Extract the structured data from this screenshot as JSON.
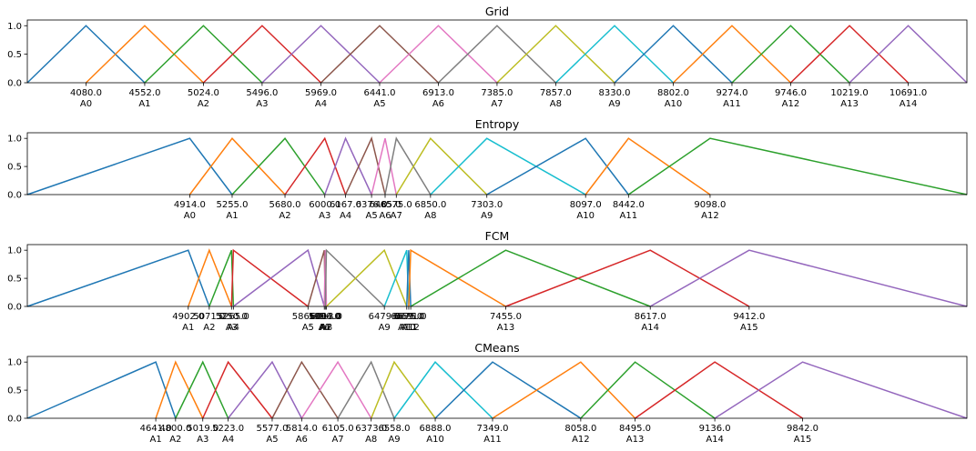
{
  "colors": [
    "#1f77b4",
    "#ff7f0e",
    "#2ca02c",
    "#d62728",
    "#9467bd",
    "#8c564b",
    "#e377c2",
    "#7f7f7f",
    "#bcbd22",
    "#17becf"
  ],
  "chart_data": [
    {
      "type": "line",
      "title": "Grid",
      "xlim": [
        3608,
        11163
      ],
      "ylim": [
        0,
        1.1
      ],
      "yticks": [
        0.0,
        0.5,
        1.0
      ],
      "ytick_labels": [
        "0.0",
        "0.5",
        "1.0"
      ],
      "sets": [
        {
          "name": "A0",
          "points": [
            3608,
            4080,
            4552
          ],
          "tick": "4080.0"
        },
        {
          "name": "A1",
          "points": [
            4080,
            4552,
            5024
          ],
          "tick": "4552.0"
        },
        {
          "name": "A2",
          "points": [
            4552,
            5024,
            5496
          ],
          "tick": "5024.0"
        },
        {
          "name": "A3",
          "points": [
            5024,
            5496,
            5969
          ],
          "tick": "5496.0"
        },
        {
          "name": "A4",
          "points": [
            5496,
            5969,
            6441
          ],
          "tick": "5969.0"
        },
        {
          "name": "A5",
          "points": [
            5969,
            6441,
            6913
          ],
          "tick": "6441.0"
        },
        {
          "name": "A6",
          "points": [
            6441,
            6913,
            7385
          ],
          "tick": "6913.0"
        },
        {
          "name": "A7",
          "points": [
            6913,
            7385,
            7857
          ],
          "tick": "7385.0"
        },
        {
          "name": "A8",
          "points": [
            7385,
            7857,
            8330
          ],
          "tick": "7857.0"
        },
        {
          "name": "A9",
          "points": [
            7857,
            8330,
            8802
          ],
          "tick": "8330.0"
        },
        {
          "name": "A10",
          "points": [
            8330,
            8802,
            9274
          ],
          "tick": "8802.0"
        },
        {
          "name": "A11",
          "points": [
            8802,
            9274,
            9746
          ],
          "tick": "9274.0"
        },
        {
          "name": "A12",
          "points": [
            9274,
            9746,
            10219
          ],
          "tick": "9746.0"
        },
        {
          "name": "A13",
          "points": [
            9746,
            10219,
            10691
          ],
          "tick": "10219.0"
        },
        {
          "name": "A14",
          "points": [
            10219,
            10691,
            11163
          ],
          "tick": "10691.0"
        }
      ]
    },
    {
      "type": "line",
      "title": "Entropy",
      "xlim": [
        3608,
        11163
      ],
      "ylim": [
        0,
        1.1
      ],
      "yticks": [
        0.0,
        0.5,
        1.0
      ],
      "ytick_labels": [
        "0.0",
        "0.5",
        "1.0"
      ],
      "sets": [
        {
          "name": "A0",
          "points": [
            3608,
            4914,
            5255
          ],
          "tick": "4914.0"
        },
        {
          "name": "A1",
          "points": [
            4914,
            5255,
            5680
          ],
          "tick": "5255.0"
        },
        {
          "name": "A2",
          "points": [
            5255,
            5680,
            6000
          ],
          "tick": "5680.0"
        },
        {
          "name": "A3",
          "points": [
            5680,
            6000,
            6167
          ],
          "tick": "6000.0"
        },
        {
          "name": "A4",
          "points": [
            6000,
            6167,
            6376
          ],
          "tick": "6167.0"
        },
        {
          "name": "A5",
          "points": [
            6167,
            6376,
            6485
          ],
          "tick": "6376.0"
        },
        {
          "name": "A6",
          "points": [
            6376,
            6485,
            6575
          ],
          "tick": "6485.0"
        },
        {
          "name": "A7",
          "points": [
            6485,
            6575,
            6850
          ],
          "tick": "6575.0"
        },
        {
          "name": "A8",
          "points": [
            6575,
            6850,
            7303
          ],
          "tick": "6850.0"
        },
        {
          "name": "A9",
          "points": [
            6850,
            7303,
            8097
          ],
          "tick": "7303.0"
        },
        {
          "name": "A10",
          "points": [
            7303,
            8097,
            8442
          ],
          "tick": "8097.0"
        },
        {
          "name": "A11",
          "points": [
            8097,
            8442,
            9098
          ],
          "tick": "8442.0"
        },
        {
          "name": "A12",
          "points": [
            8442,
            9098,
            11163
          ],
          "tick": "9098.0"
        }
      ]
    },
    {
      "type": "line",
      "title": "FCM",
      "xlim": [
        3608,
        11163
      ],
      "ylim": [
        0,
        1.1
      ],
      "yticks": [
        0.0,
        0.5,
        1.0
      ],
      "ytick_labels": [
        "0.0",
        "0.5",
        "1.0"
      ],
      "sets": [
        {
          "name": "A1",
          "points": [
            3608,
            4902,
            5071
          ],
          "tick": "4902.0"
        },
        {
          "name": "A2",
          "points": [
            4902,
            5071,
            5250
          ],
          "tick": "5071.0"
        },
        {
          "name": "A3",
          "points": [
            5071,
            5250,
            5265
          ],
          "tick": "5250.0"
        },
        {
          "name": "A4",
          "points": [
            5250,
            5265,
            5865
          ],
          "tick": "5265.0"
        },
        {
          "name": "A5",
          "points": [
            5265,
            5865,
            5996
          ],
          "tick": "5865.0"
        },
        {
          "name": "A6",
          "points": [
            5865,
            5996,
            6004
          ],
          "tick": "5996.0"
        },
        {
          "name": "A7",
          "points": [
            5996,
            6004,
            6013
          ],
          "tick": "6004.0"
        },
        {
          "name": "A8",
          "points": [
            6004,
            6013,
            6479
          ],
          "tick": "6013.0"
        },
        {
          "name": "A9",
          "points": [
            6013,
            6479,
            6659
          ],
          "tick": "6479.0"
        },
        {
          "name": "A10",
          "points": [
            6479,
            6659,
            6675
          ],
          "tick": "6659.0"
        },
        {
          "name": "A11",
          "points": [
            6659,
            6675,
            6691
          ],
          "tick": "6675.0"
        },
        {
          "name": "A12",
          "points": [
            6675,
            6691,
            7455
          ],
          "tick": "6691.0"
        },
        {
          "name": "A13",
          "points": [
            6691,
            7455,
            8617
          ],
          "tick": "7455.0"
        },
        {
          "name": "A14",
          "points": [
            7455,
            8617,
            9412
          ],
          "tick": "8617.0"
        },
        {
          "name": "A15",
          "points": [
            8617,
            9412,
            11163
          ],
          "tick": "9412.0"
        }
      ]
    },
    {
      "type": "line",
      "title": "CMeans",
      "xlim": [
        3608,
        11163
      ],
      "ylim": [
        0,
        1.1
      ],
      "yticks": [
        0.0,
        0.5,
        1.0
      ],
      "ytick_labels": [
        "0.0",
        "0.5",
        "1.0"
      ],
      "sets": [
        {
          "name": "A1",
          "points": [
            3608,
            4641,
            4800
          ],
          "tick": "4641.0"
        },
        {
          "name": "A2",
          "points": [
            4641,
            4800,
            5019
          ],
          "tick": "4800.0"
        },
        {
          "name": "A3",
          "points": [
            4800,
            5019,
            5223
          ],
          "tick": "5019.0"
        },
        {
          "name": "A4",
          "points": [
            5019,
            5223,
            5577
          ],
          "tick": "5223.0"
        },
        {
          "name": "A5",
          "points": [
            5223,
            5577,
            5814
          ],
          "tick": "5577.0"
        },
        {
          "name": "A6",
          "points": [
            5577,
            5814,
            6105
          ],
          "tick": "5814.0"
        },
        {
          "name": "A7",
          "points": [
            5814,
            6105,
            6373
          ],
          "tick": "6105.0"
        },
        {
          "name": "A8",
          "points": [
            6105,
            6373,
            6558
          ],
          "tick": "6373.0"
        },
        {
          "name": "A9",
          "points": [
            6373,
            6558,
            6888
          ],
          "tick": "6558.0"
        },
        {
          "name": "A10",
          "points": [
            6558,
            6888,
            7349
          ],
          "tick": "6888.0"
        },
        {
          "name": "A11",
          "points": [
            6888,
            7349,
            8058
          ],
          "tick": "7349.0"
        },
        {
          "name": "A12",
          "points": [
            7349,
            8058,
            8495
          ],
          "tick": "8058.0"
        },
        {
          "name": "A13",
          "points": [
            8058,
            8495,
            9136
          ],
          "tick": "8495.0"
        },
        {
          "name": "A14",
          "points": [
            8495,
            9136,
            9842
          ],
          "tick": "9136.0"
        },
        {
          "name": "A15",
          "points": [
            9136,
            9842,
            11163
          ],
          "tick": "9842.0"
        }
      ]
    }
  ]
}
